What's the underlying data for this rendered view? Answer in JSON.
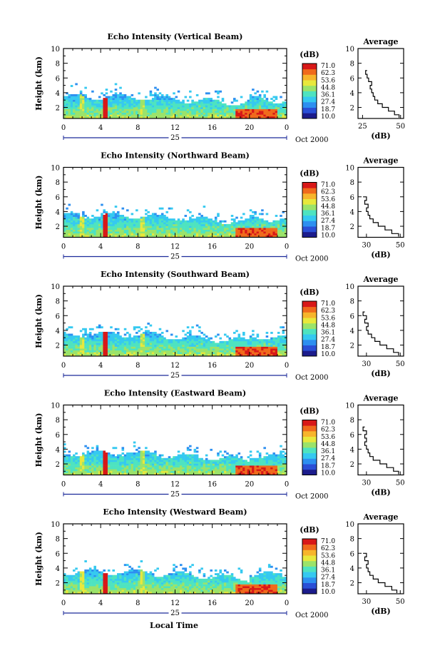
{
  "figure": {
    "xlabel_bottom": "Local Time",
    "colorbar_unit": "(dB)",
    "colorbar_ticks": [
      "71.0",
      "62.3",
      "53.6",
      "44.8",
      "36.1",
      "27.4",
      "18.7",
      "10.0"
    ],
    "colormap": [
      "#1c1c8c",
      "#2a4fd6",
      "#2d8ff0",
      "#35c9f0",
      "#4ee3c0",
      "#9be36a",
      "#e8e83c",
      "#f7b52c",
      "#f06a1c",
      "#d81818"
    ],
    "profile_title": "Average",
    "profile_xlabel": "(dB)"
  },
  "chart_data": [
    {
      "type": "heatmap",
      "title": "Echo Intensity (Vertical Beam)",
      "ylabel": "Height (km)",
      "ylim": [
        0.5,
        10
      ],
      "yticks": [
        2,
        4,
        6,
        8,
        10
      ],
      "xlim": [
        0,
        24
      ],
      "xticks": [
        "0",
        "4",
        "8",
        "12",
        "16",
        "20",
        "0"
      ],
      "day_label": "25",
      "date_label": "Oct 2000",
      "profile": {
        "xticks": [
          "25",
          "50"
        ],
        "xlim": [
          22,
          52
        ],
        "heights": [
          0.6,
          1.0,
          1.5,
          2.0,
          2.5,
          3.0,
          3.5,
          4.0,
          4.5,
          5.0,
          5.5,
          6.0,
          6.5,
          7.0
        ],
        "values": [
          49,
          46,
          42,
          38,
          35,
          33,
          32,
          31,
          30,
          31,
          29,
          28,
          27,
          28
        ]
      }
    },
    {
      "type": "heatmap",
      "title": "Echo Intensity (Northward Beam)",
      "ylabel": "Height (km)",
      "ylim": [
        0.5,
        10
      ],
      "yticks": [
        2,
        4,
        6,
        8,
        10
      ],
      "xlim": [
        0,
        24
      ],
      "xticks": [
        "0",
        "4",
        "8",
        "12",
        "16",
        "20",
        "0"
      ],
      "day_label": "25",
      "date_label": "Oct 2000",
      "profile": {
        "xticks": [
          "30",
          "50"
        ],
        "xlim": [
          25,
          52
        ],
        "heights": [
          0.6,
          1.0,
          1.5,
          2.0,
          2.5,
          3.0,
          3.5,
          4.0,
          4.5,
          5.0,
          5.5,
          6.0
        ],
        "values": [
          49,
          45,
          41,
          37,
          34,
          32,
          31,
          30,
          31,
          29,
          30,
          28
        ]
      }
    },
    {
      "type": "heatmap",
      "title": "Echo Intensity (Southward Beam)",
      "ylabel": "Height (km)",
      "ylim": [
        0.5,
        10
      ],
      "yticks": [
        2,
        4,
        6,
        8,
        10
      ],
      "xlim": [
        0,
        24
      ],
      "xticks": [
        "0",
        "4",
        "8",
        "12",
        "16",
        "20",
        "0"
      ],
      "day_label": "25",
      "date_label": "Oct 2000",
      "profile": {
        "xticks": [
          "30",
          "50"
        ],
        "xlim": [
          25,
          52
        ],
        "heights": [
          0.6,
          1.0,
          1.5,
          2.0,
          2.5,
          3.0,
          3.5,
          4.0,
          4.5,
          5.0,
          5.5,
          6.0,
          6.5
        ],
        "values": [
          49,
          46,
          42,
          38,
          35,
          33,
          31,
          30,
          31,
          29,
          30,
          28,
          29
        ]
      }
    },
    {
      "type": "heatmap",
      "title": "Echo Intensity (Eastward Beam)",
      "ylabel": "Height (km)",
      "ylim": [
        0.5,
        10
      ],
      "yticks": [
        2,
        4,
        6,
        8,
        10
      ],
      "xlim": [
        0,
        24
      ],
      "xticks": [
        "0",
        "4",
        "8",
        "12",
        "16",
        "20",
        "0"
      ],
      "day_label": "25",
      "date_label": "Oct 2000",
      "profile": {
        "xticks": [
          "30",
          "50"
        ],
        "xlim": [
          25,
          52
        ],
        "heights": [
          0.6,
          1.0,
          1.5,
          2.0,
          2.5,
          3.0,
          3.5,
          4.0,
          4.5,
          5.0,
          5.5,
          6.0,
          6.5,
          7.0
        ],
        "values": [
          49,
          46,
          42,
          38,
          34,
          32,
          31,
          30,
          29,
          30,
          29,
          30,
          28,
          29
        ]
      }
    },
    {
      "type": "heatmap",
      "title": "Echo Intensity (Westward Beam)",
      "ylabel": "Height (km)",
      "ylim": [
        0.5,
        10
      ],
      "yticks": [
        2,
        4,
        6,
        8,
        10
      ],
      "xlim": [
        0,
        24
      ],
      "xticks": [
        "0",
        "4",
        "8",
        "12",
        "16",
        "20",
        "0"
      ],
      "day_label": "25",
      "date_label": "Oct 2000",
      "profile": {
        "xticks": [
          "30",
          "50"
        ],
        "xlim": [
          25,
          52
        ],
        "heights": [
          0.6,
          1.0,
          1.5,
          2.0,
          2.5,
          3.0,
          3.5,
          4.0,
          4.5,
          5.0,
          5.5,
          6.0
        ],
        "values": [
          48,
          45,
          41,
          37,
          34,
          32,
          31,
          30,
          31,
          29,
          30,
          28
        ]
      }
    }
  ]
}
